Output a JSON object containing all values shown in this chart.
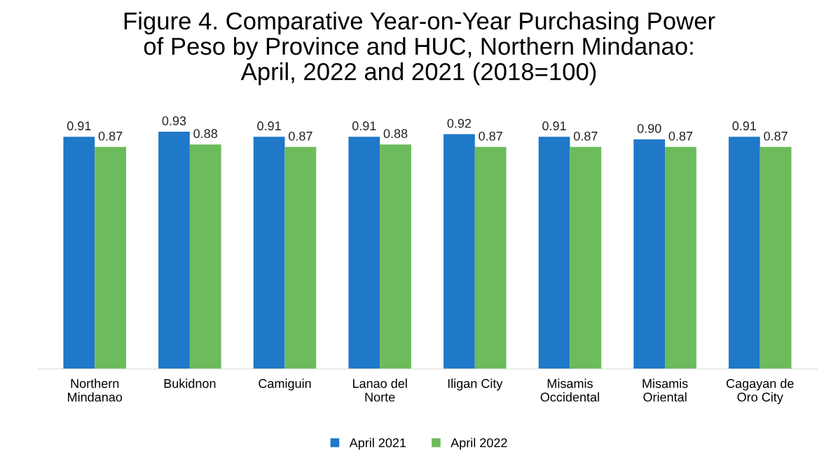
{
  "chart_data": {
    "type": "bar",
    "title": "Figure 4. Comparative Year-on-Year Purchasing Power\nof Peso by Province and HUC, Northern Mindanao:\nApril, 2022 and 2021 (2018=100)",
    "categories": [
      "Northern\nMindanao",
      "Bukidnon",
      "Camiguin",
      "Lanao del\nNorte",
      "Iligan City",
      "Misamis\nOccidental",
      "Misamis\nOriental",
      "Cagayan de\nOro City"
    ],
    "series": [
      {
        "name": "April 2021",
        "color": "#1f78c8",
        "values": [
          0.91,
          0.93,
          0.91,
          0.91,
          0.92,
          0.91,
          0.9,
          0.91
        ],
        "value_labels": [
          "0.91",
          "0.93",
          "0.91",
          "0.91",
          "0.92",
          "0.91",
          "0.90",
          "0.91"
        ]
      },
      {
        "name": "April 2022",
        "color": "#6cbb5c",
        "values": [
          0.87,
          0.88,
          0.87,
          0.88,
          0.87,
          0.87,
          0.87,
          0.87
        ],
        "value_labels": [
          "0.87",
          "0.88",
          "0.87",
          "0.88",
          "0.87",
          "0.87",
          "0.87",
          "0.87"
        ]
      }
    ],
    "legend": "bottom",
    "grid": false,
    "tick_labels": "x"
  }
}
